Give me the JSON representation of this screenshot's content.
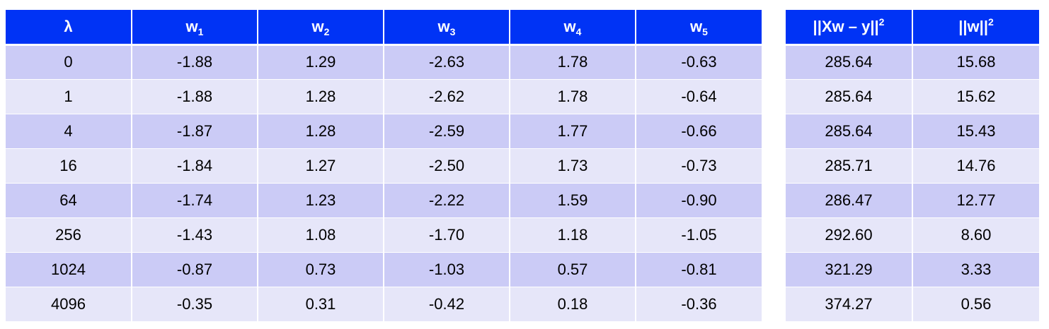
{
  "weights_table": {
    "headers": [
      {
        "base": "λ",
        "sub": ""
      },
      {
        "base": "w",
        "sub": "1"
      },
      {
        "base": "w",
        "sub": "2"
      },
      {
        "base": "w",
        "sub": "3"
      },
      {
        "base": "w",
        "sub": "4"
      },
      {
        "base": "w",
        "sub": "5"
      }
    ],
    "rows": [
      [
        "0",
        "-1.88",
        "1.29",
        "-2.63",
        "1.78",
        "-0.63"
      ],
      [
        "1",
        "-1.88",
        "1.28",
        "-2.62",
        "1.78",
        "-0.64"
      ],
      [
        "4",
        "-1.87",
        "1.28",
        "-2.59",
        "1.77",
        "-0.66"
      ],
      [
        "16",
        "-1.84",
        "1.27",
        "-2.50",
        "1.73",
        "-0.73"
      ],
      [
        "64",
        "-1.74",
        "1.23",
        "-2.22",
        "1.59",
        "-0.90"
      ],
      [
        "256",
        "-1.43",
        "1.08",
        "-1.70",
        "1.18",
        "-1.05"
      ],
      [
        "1024",
        "-0.87",
        "0.73",
        "-1.03",
        "0.57",
        "-0.81"
      ],
      [
        "4096",
        "-0.35",
        "0.31",
        "-0.42",
        "0.18",
        "-0.36"
      ]
    ]
  },
  "metrics_table": {
    "headers": [
      {
        "base": "||Xw – y||",
        "sup": "2"
      },
      {
        "base": "||w||",
        "sup": "2"
      }
    ],
    "rows": [
      [
        "285.64",
        "15.68"
      ],
      [
        "285.64",
        "15.62"
      ],
      [
        "285.64",
        "15.43"
      ],
      [
        "285.71",
        "14.76"
      ],
      [
        "286.47",
        "12.77"
      ],
      [
        "292.60",
        "8.60"
      ],
      [
        "321.29",
        "3.33"
      ],
      [
        "374.27",
        "0.56"
      ]
    ]
  },
  "colors": {
    "header_bg": "#0033f5",
    "row_odd_bg": "#cbcbf6",
    "row_even_bg": "#e6e6f9"
  }
}
